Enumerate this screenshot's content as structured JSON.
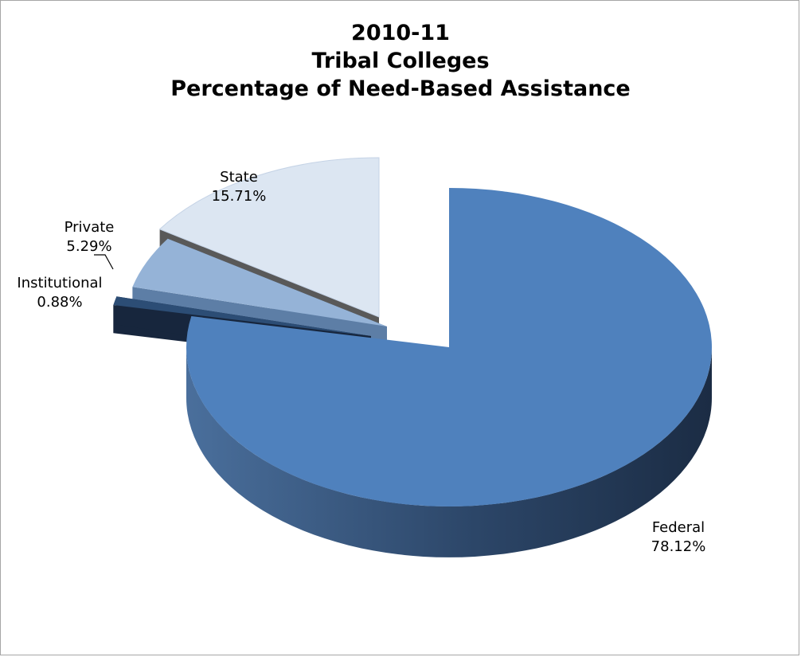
{
  "chart_data": {
    "type": "pie",
    "style": "3d-exploded",
    "title_lines": [
      "2010-11",
      "Tribal Colleges",
      "Percentage of Need-Based Assistance"
    ],
    "slices": [
      {
        "label": "Federal",
        "value": 78.12,
        "value_label": "78.12%",
        "color": "#4f81bd",
        "side_color": "#2f4f77",
        "exploded": false
      },
      {
        "label": "Institutional",
        "value": 0.88,
        "value_label": "0.88%",
        "color": "#2c4d75",
        "side_color": "#17263d",
        "exploded": true
      },
      {
        "label": "Private",
        "value": 5.29,
        "value_label": "5.29%",
        "color": "#95b3d7",
        "side_color": "#5d7ea6",
        "exploded": true
      },
      {
        "label": "State",
        "value": 15.71,
        "value_label": "15.71%",
        "color": "#dce6f2",
        "side_color": "#595959",
        "exploded": true
      }
    ],
    "legend": "none"
  }
}
